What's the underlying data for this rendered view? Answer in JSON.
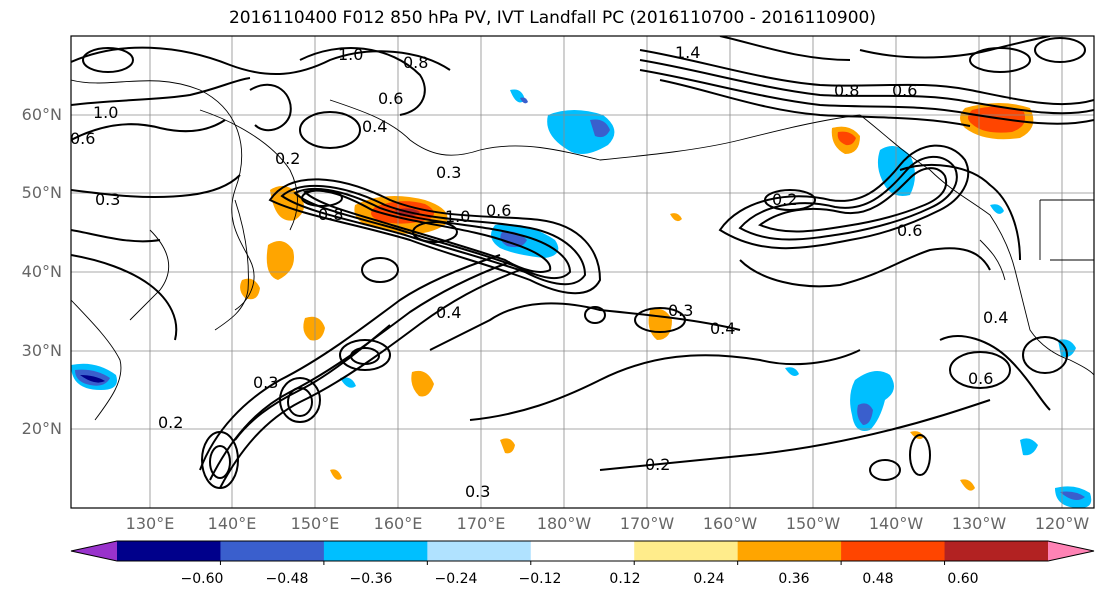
{
  "title": "2016110400 F012 850 hPa PV, IVT Landfall PC (2016110700 - 2016110900)",
  "lat_labels": [
    "60°N",
    "50°N",
    "40°N",
    "30°N",
    "20°N"
  ],
  "lon_labels": [
    "130°E",
    "140°E",
    "150°E",
    "160°E",
    "170°E",
    "180°W",
    "170°W",
    "160°W",
    "150°W",
    "140°W",
    "130°W",
    "120°W"
  ],
  "colorbar": {
    "colors": [
      "#9933cc",
      "#00008b",
      "#3a5fcd",
      "#00bfff",
      "#b0e2ff",
      "#ffffff",
      "#ffec8b",
      "#ffa500",
      "#ff4500",
      "#b22222",
      "#ff83b5"
    ],
    "ticks": [
      "−0.60",
      "−0.48",
      "−0.36",
      "−0.24",
      "−0.12",
      "0.12",
      "0.24",
      "0.36",
      "0.48",
      "0.60"
    ]
  },
  "contour_labels": [
    "1.0",
    "0.8",
    "1.4",
    "0.6",
    "0.4",
    "0.2",
    "0.3",
    "0.8",
    "0.6",
    "1.0",
    "1.0",
    "0.3",
    "0.4",
    "0.2",
    "0.6",
    "0.3",
    "0.2",
    "0.3",
    "0.3",
    "0.4",
    "0.6",
    "0.2",
    "0.4",
    "0.6",
    "0.8",
    "0.6"
  ]
}
